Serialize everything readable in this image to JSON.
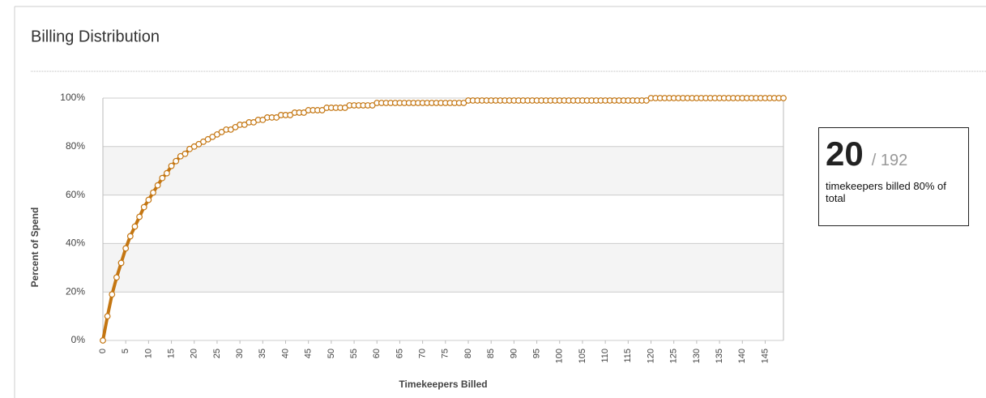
{
  "chart_data": {
    "type": "line",
    "title": "Billing Distribution",
    "x_label": "Timekeepers Billed",
    "y_label": "Percent of Spend",
    "x": [
      0,
      1,
      2,
      3,
      4,
      5,
      6,
      7,
      8,
      9,
      10,
      11,
      12,
      13,
      14,
      15,
      16,
      17,
      18,
      19,
      20,
      21,
      22,
      23,
      24,
      25,
      26,
      27,
      28,
      29,
      30,
      31,
      32,
      33,
      34,
      35,
      36,
      37,
      38,
      39,
      40,
      41,
      42,
      43,
      44,
      45,
      46,
      47,
      48,
      49,
      50,
      51,
      52,
      53,
      54,
      55,
      56,
      57,
      58,
      59,
      60,
      61,
      62,
      63,
      64,
      65,
      66,
      67,
      68,
      69,
      70,
      71,
      72,
      73,
      74,
      75,
      76,
      77,
      78,
      79,
      80,
      81,
      82,
      83,
      84,
      85,
      86,
      87,
      88,
      89,
      90,
      91,
      92,
      93,
      94,
      95,
      96,
      97,
      98,
      99,
      100,
      101,
      102,
      103,
      104,
      105,
      106,
      107,
      108,
      109,
      110,
      111,
      112,
      113,
      114,
      115,
      116,
      117,
      118,
      119,
      120,
      121,
      122,
      123,
      124,
      125,
      126,
      127,
      128,
      129,
      130,
      131,
      132,
      133,
      134,
      135,
      136,
      137,
      138,
      139,
      140,
      141,
      142,
      143,
      144,
      145,
      146,
      147,
      148,
      149
    ],
    "values": [
      0,
      10,
      19,
      26,
      32,
      38,
      43,
      47,
      51,
      55,
      58,
      61,
      64,
      67,
      69,
      72,
      74,
      76,
      77,
      79,
      80,
      81,
      82,
      83,
      84,
      85,
      86,
      87,
      87,
      88,
      89,
      89,
      90,
      90,
      91,
      91,
      92,
      92,
      92,
      93,
      93,
      93,
      94,
      94,
      94,
      95,
      95,
      95,
      95,
      96,
      96,
      96,
      96,
      96,
      97,
      97,
      97,
      97,
      97,
      97,
      98,
      98,
      98,
      98,
      98,
      98,
      98,
      98,
      98,
      98,
      98,
      98,
      98,
      98,
      98,
      98,
      98,
      98,
      98,
      98,
      99,
      99,
      99,
      99,
      99,
      99,
      99,
      99,
      99,
      99,
      99,
      99,
      99,
      99,
      99,
      99,
      99,
      99,
      99,
      99,
      99,
      99,
      99,
      99,
      99,
      99,
      99,
      99,
      99,
      99,
      99,
      99,
      99,
      99,
      99,
      99,
      99,
      99,
      99,
      99,
      100,
      100,
      100,
      100,
      100,
      100,
      100,
      100,
      100,
      100,
      100,
      100,
      100,
      100,
      100,
      100,
      100,
      100,
      100,
      100,
      100,
      100,
      100,
      100,
      100,
      100,
      100,
      100,
      100,
      100
    ],
    "color": "#c47612",
    "xlim": [
      0,
      149
    ],
    "xticks": [
      0,
      5,
      10,
      15,
      20,
      25,
      30,
      35,
      40,
      45,
      50,
      55,
      60,
      65,
      70,
      75,
      80,
      85,
      90,
      95,
      100,
      105,
      110,
      115,
      120,
      125,
      130,
      135,
      140,
      145
    ],
    "ylim": [
      0,
      100
    ],
    "yticks": [
      {
        "value": 0,
        "label": "0%"
      },
      {
        "value": 20,
        "label": "20%"
      },
      {
        "value": 40,
        "label": "40%"
      },
      {
        "value": 60,
        "label": "60%"
      },
      {
        "value": 80,
        "label": "80%"
      },
      {
        "value": 100,
        "label": "100%"
      }
    ],
    "grid": true
  },
  "summary": {
    "count": "20",
    "total": "/ 192",
    "caption": "timekeepers billed 80% of total"
  }
}
